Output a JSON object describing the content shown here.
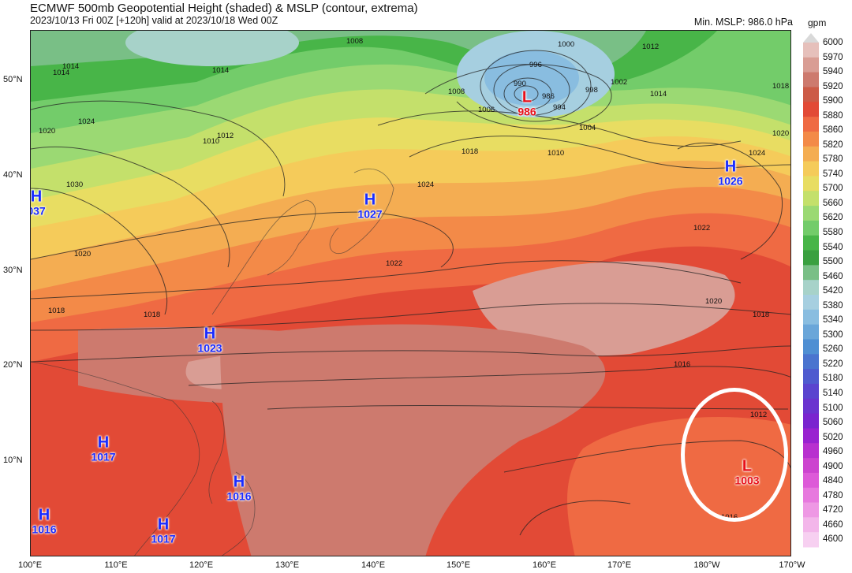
{
  "header": {
    "title": "ECMWF 500mb Geopotential Height (shaded) & MSLP (contour, extrema)",
    "subtitle": "2023/10/13 Fri 00Z [+120h] valid at 2023/10/18 Wed 00Z",
    "min_mslp": "Min. MSLP: 986.0 hPa"
  },
  "colorbar": {
    "unit": "gpm",
    "levels": [
      "6000",
      "5970",
      "5940",
      "5920",
      "5900",
      "5880",
      "5860",
      "5820",
      "5780",
      "5740",
      "5700",
      "5660",
      "5620",
      "5580",
      "5540",
      "5500",
      "5460",
      "5420",
      "5380",
      "5340",
      "5300",
      "5260",
      "5220",
      "5180",
      "5140",
      "5100",
      "5060",
      "5020",
      "4960",
      "4900",
      "4840",
      "4780",
      "4720",
      "4660",
      "4600"
    ],
    "colors": [
      "#d9d9d9",
      "#e6c0bb",
      "#d99d94",
      "#cd7a6e",
      "#cc5b47",
      "#e24a36",
      "#ef6a43",
      "#f38a48",
      "#f4ad52",
      "#f5cb5a",
      "#e8dd62",
      "#c4e06b",
      "#9bd973",
      "#73cc6a",
      "#48b548",
      "#3aa040",
      "#79bf86",
      "#a7d2c9",
      "#a6cfe0",
      "#89bde0",
      "#6aa6d9",
      "#4f8fd3",
      "#4a74cf",
      "#4f5bcf",
      "#5a44cf",
      "#6a33cf",
      "#7a24cf",
      "#9922d0",
      "#b830cf",
      "#cc44cf",
      "#dd5ad8",
      "#e779de",
      "#ee98e4",
      "#f3b6ea",
      "#f7d0f1"
    ]
  },
  "axes": {
    "lat_labels": [
      "50°N",
      "40°N",
      "30°N",
      "20°N",
      "10°N"
    ],
    "lon_labels": [
      "100°E",
      "110°E",
      "120°E",
      "130°E",
      "140°E",
      "150°E",
      "160°E",
      "170°E",
      "180°W",
      "170°W"
    ]
  },
  "pressure_centers": [
    {
      "type": "H",
      "value": "037"
    },
    {
      "type": "H",
      "value": "1027"
    },
    {
      "type": "H",
      "value": "1026"
    },
    {
      "type": "H",
      "value": "1023"
    },
    {
      "type": "H",
      "value": "1017"
    },
    {
      "type": "H",
      "value": "1016"
    },
    {
      "type": "H",
      "value": "1016"
    },
    {
      "type": "H",
      "value": "1017"
    },
    {
      "type": "L",
      "value": "986"
    },
    {
      "type": "L",
      "value": "1003"
    }
  ],
  "isobar_labels": [
    "1014",
    "1014",
    "1008",
    "1000",
    "996",
    "990",
    "986",
    "994",
    "998",
    "1002",
    "1012",
    "1014",
    "1020",
    "1018",
    "1024",
    "1018",
    "1004",
    "1006",
    "1008",
    "1010",
    "1012",
    "1010",
    "1024",
    "1022",
    "1022",
    "1020",
    "1018",
    "1016",
    "1012",
    "1014",
    "1020",
    "1018",
    "1018",
    "1024",
    "1030",
    "1020",
    "1016"
  ]
}
